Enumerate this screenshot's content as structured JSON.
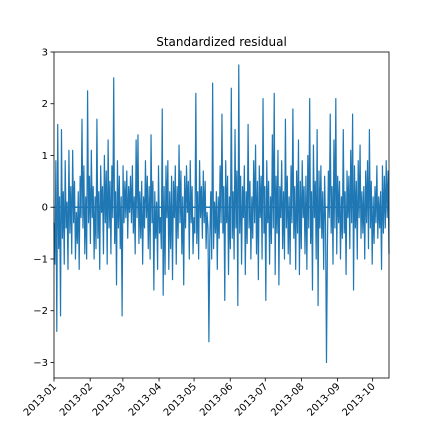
{
  "chart_data": {
    "type": "line",
    "title": "Standardized residual",
    "xlabel": "",
    "ylabel": "",
    "x_start": "2013-01-01",
    "x_end": "2013-10-15",
    "x_ticks": [
      "2013-01",
      "2013-02",
      "2013-03",
      "2013-04",
      "2013-05",
      "2013-06",
      "2013-07",
      "2013-08",
      "2013-09",
      "2013-10"
    ],
    "y_ticks": [
      "−3",
      "−2",
      "−1",
      "0",
      "1",
      "2",
      "3"
    ],
    "ylim": [
      -3.3,
      3.0
    ],
    "grid": false,
    "reference_line": 0,
    "color": "#1f77b4",
    "series": [
      {
        "values": [
          -0.3,
          -1.1,
          0.9,
          -2.4,
          1.6,
          -0.8,
          0.2,
          -2.1,
          1.5,
          -0.6,
          0.3,
          -1.1,
          0.9,
          -0.4,
          0.1,
          -1.2,
          1.1,
          -0.5,
          0.4,
          -0.9,
          1.1,
          -0.3,
          0.5,
          -1.0,
          -0.1,
          -0.7,
          0.3,
          -1.2,
          0.6,
          -0.2,
          1.7,
          -0.4,
          0.8,
          -0.9,
          0.2,
          -1.0,
          2.25,
          -0.3,
          0.6,
          -0.7,
          1.1,
          -0.2,
          0.4,
          -1.0,
          0.2,
          -0.8,
          1.7,
          -0.6,
          0.3,
          -1.2,
          0.8,
          -0.1,
          0.4,
          -0.9,
          1.0,
          -0.3,
          0.7,
          -1.1,
          1.3,
          -0.4,
          0.5,
          -0.9,
          0.8,
          -0.2,
          2.5,
          -0.7,
          0.3,
          -1.5,
          0.9,
          -0.4,
          0.6,
          -0.8,
          0.2,
          -2.1,
          0.8,
          -0.3,
          0.5,
          -0.2,
          0.7,
          -0.6,
          0.4,
          -0.1,
          0.6,
          -0.3,
          0.8,
          -0.5,
          0.2,
          -0.9,
          1.3,
          -0.2,
          1.4,
          -0.7,
          0.3,
          -0.6,
          0.5,
          -1.1,
          0.2,
          -0.4,
          0.9,
          -0.2,
          0.6,
          -0.8,
          0.4,
          -1.0,
          1.4,
          -0.3,
          0.5,
          -1.6,
          0.3,
          -0.6,
          0.1,
          -1.2,
          0.8,
          -0.5,
          -0.2,
          -0.8,
          1.9,
          -1.7,
          0.4,
          -1.3,
          0.8,
          -0.2,
          0.9,
          -1.2,
          0.3,
          -0.8,
          0.6,
          -1.4,
          0.5,
          -0.2,
          0.8,
          -1.1,
          0.4,
          -0.6,
          1.2,
          -0.3,
          0.7,
          -0.9,
          0.2,
          -1.5,
          0.6,
          -0.4,
          0.8,
          -0.1,
          0.5,
          -1.0,
          0.9,
          -0.3,
          0.4,
          -0.9,
          -0.2,
          -0.5,
          2.2,
          -0.7,
          0.3,
          -1.0,
          0.9,
          -0.2,
          0.4,
          -0.6,
          0.7,
          -0.3,
          0.5,
          -0.8,
          -0.1,
          -0.4,
          -2.6,
          -0.6,
          0.3,
          -1.0,
          2.4,
          -0.8,
          0.1,
          -0.5,
          0.3,
          -1.2,
          0.2,
          -0.6,
          0.8,
          -0.3,
          1.8,
          -0.5,
          0.4,
          -1.8,
          0.9,
          -0.3,
          0.6,
          -1.3,
          0.2,
          -0.8,
          2.3,
          -0.6,
          0.3,
          -1.0,
          1.5,
          -0.4,
          0.7,
          -1.9,
          2.75,
          -0.5,
          0.6,
          -1.1,
          0.4,
          -0.2,
          0.8,
          -1.3,
          0.3,
          -0.7,
          1.6,
          -0.4,
          0.5,
          -1.0,
          0.2,
          -0.6,
          0.9,
          -0.3,
          1.2,
          -0.9,
          0.5,
          -1.4,
          0.8,
          -0.2,
          0.6,
          -1.0,
          2.1,
          -0.5,
          0.4,
          -1.8,
          0.9,
          -0.3,
          0.5,
          -1.1,
          0.2,
          -0.7,
          1.4,
          -0.4,
          2.2,
          -1.3,
          0.6,
          -0.5,
          1.1,
          -1.5,
          0.4,
          -0.2,
          0.9,
          -0.8,
          0.3,
          -1.0,
          1.7,
          -0.4,
          0.6,
          -0.9,
          0.2,
          -1.1,
          0.8,
          -0.3,
          1.9,
          -0.6,
          0.4,
          -1.2,
          0.7,
          -0.5,
          1.3,
          -1.3,
          0.5,
          -0.8,
          0.9,
          -0.2,
          0.4,
          -0.9,
          0.6,
          -1.2,
          1.0,
          -0.4,
          2.1,
          -0.7,
          0.3,
          -1.6,
          1.2,
          -0.2,
          0.5,
          -1.0,
          1.5,
          -1.9,
          0.7,
          -0.4,
          0.8,
          -0.6,
          0.3,
          -1.2,
          0.6,
          -0.3,
          -3.0,
          -0.8,
          0.7,
          -0.2,
          1.8,
          -0.5,
          0.4,
          -1.1,
          1.3,
          -0.4,
          2.1,
          -0.9,
          0.6,
          -0.3,
          0.5,
          -1.0,
          0.2,
          -0.6,
          1.5,
          -0.5,
          0.3,
          -1.3,
          0.7,
          -0.2,
          0.6,
          -0.8,
          1.1,
          -0.3,
          1.8,
          -1.6,
          0.8,
          -0.4,
          0.5,
          -1.0,
          0.9,
          -0.2,
          1.2,
          -0.6,
          0.3,
          -0.5,
          0.4,
          -1.0,
          0.7,
          -0.3,
          0.9,
          -0.8,
          1.5,
          -0.4,
          0.5,
          -1.1,
          0.2,
          -0.7,
          0.4,
          -0.3,
          0.8,
          -0.6,
          0.2,
          -0.4,
          0.3,
          -1.2,
          0.8,
          -0.5,
          0.6,
          -0.4,
          0.9,
          -0.2,
          0.7,
          -0.9
        ]
      }
    ]
  }
}
